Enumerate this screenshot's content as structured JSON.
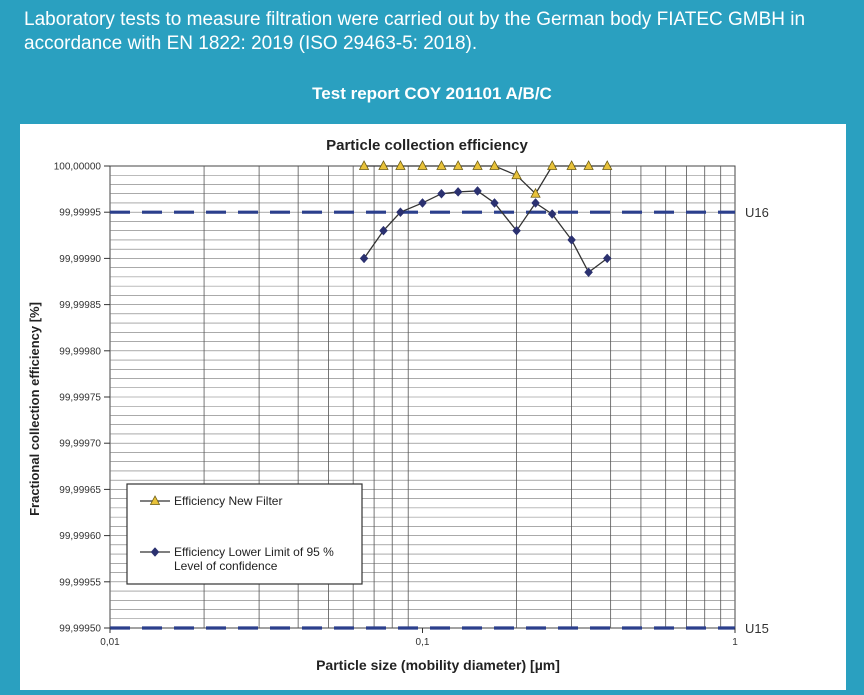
{
  "header": {
    "intro_text": "Laboratory tests to measure filtration were carried out by the German body FIATEC GMBH in accordance with EN 1822: 2019 (ISO 29463-5: 2018).",
    "report_title": "Test report COY 201101 A/B/C"
  },
  "colors": {
    "page_background": "#2aa0c0",
    "new_filter": "#e8c23a",
    "lower_limit": "#2b3170",
    "threshold_line": "#2b3f8c"
  },
  "chart_data": {
    "type": "line",
    "title": "Particle collection efficiency",
    "xlabel": "Particle size (mobility diameter) [µm]",
    "ylabel": "Fractional collection efficiency  [%]",
    "x_scale": "log",
    "xlim": [
      0.01,
      1
    ],
    "ylim": [
      99.9995,
      100.0
    ],
    "x_ticks": [
      {
        "value": 0.01,
        "label": "0,01"
      },
      {
        "value": 0.1,
        "label": "0,1"
      },
      {
        "value": 1,
        "label": "1"
      }
    ],
    "y_ticks": [
      {
        "value": 100.0,
        "label": "100,00000"
      },
      {
        "value": 99.99995,
        "label": "99,99995"
      },
      {
        "value": 99.9999,
        "label": "99,99990"
      },
      {
        "value": 99.99985,
        "label": "99,99985"
      },
      {
        "value": 99.9998,
        "label": "99,99980"
      },
      {
        "value": 99.99975,
        "label": "99,99975"
      },
      {
        "value": 99.9997,
        "label": "99,99970"
      },
      {
        "value": 99.99965,
        "label": "99,99965"
      },
      {
        "value": 99.9996,
        "label": "99,99960"
      },
      {
        "value": 99.99955,
        "label": "99,99955"
      },
      {
        "value": 99.9995,
        "label": "99,99950"
      }
    ],
    "grid": true,
    "legend_position": "bottom-left",
    "series": [
      {
        "name": "Efficiency New Filter",
        "marker": "triangle",
        "color": "#e8c23a",
        "x": [
          0.065,
          0.075,
          0.085,
          0.1,
          0.115,
          0.13,
          0.15,
          0.17,
          0.2,
          0.23,
          0.26,
          0.3,
          0.34,
          0.39
        ],
        "y": [
          100.0,
          100.0,
          100.0,
          100.0,
          100.0,
          100.0,
          100.0,
          100.0,
          99.99999,
          99.99997,
          100.0,
          100.0,
          100.0,
          100.0
        ]
      },
      {
        "name": "Efficiency Lower Limit of 95 % Level of confidence",
        "legend_lines": [
          "Efficiency Lower Limit of 95 %",
          "Level of confidence"
        ],
        "marker": "diamond",
        "color": "#2b3170",
        "x": [
          0.065,
          0.075,
          0.085,
          0.1,
          0.115,
          0.13,
          0.15,
          0.17,
          0.2,
          0.23,
          0.26,
          0.3,
          0.34,
          0.39
        ],
        "y": [
          99.9999,
          99.99993,
          99.99995,
          99.99996,
          99.99997,
          99.999972,
          99.999973,
          99.99996,
          99.99993,
          99.99996,
          99.999948,
          99.99992,
          99.999885,
          99.9999
        ]
      }
    ],
    "thresholds": [
      {
        "label": "U16",
        "value": 99.99995
      },
      {
        "label": "U15",
        "value": 99.9995
      }
    ]
  }
}
